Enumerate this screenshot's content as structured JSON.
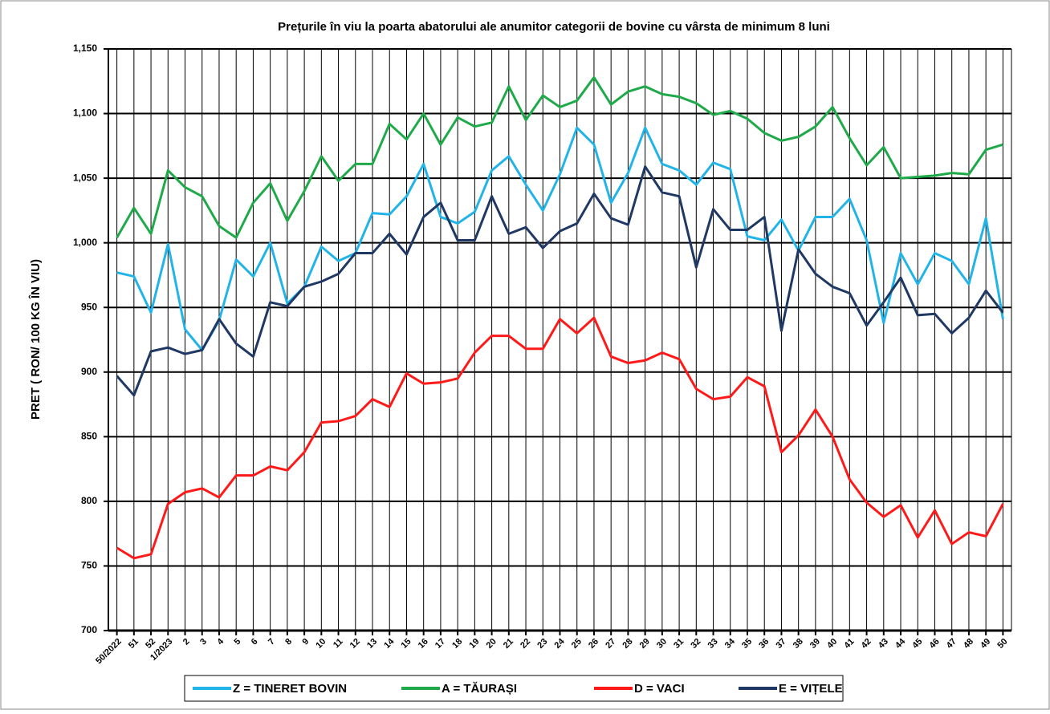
{
  "chart_data": {
    "type": "line",
    "title": "Prețurile în viu la poarta abatorului ale anumitor categorii de  bovine cu vârsta de minimum 8 luni",
    "y_label": "PRET ( RON/ 100 KG ÎN VIU)",
    "categories": [
      "50/2022",
      "51",
      "52",
      "1/2023",
      "2",
      "3",
      "4",
      "5",
      "6",
      "7",
      "8",
      "9",
      "10",
      "11",
      "12",
      "13",
      "14",
      "15",
      "16",
      "17",
      "18",
      "19",
      "20",
      "21",
      "22",
      "23",
      "24",
      "25",
      "26",
      "27",
      "28",
      "29",
      "30",
      "31",
      "32",
      "33",
      "34",
      "35",
      "36",
      "37",
      "38",
      "39",
      "40",
      "41",
      "42",
      "43",
      "44",
      "45",
      "46",
      "47",
      "48",
      "49",
      "50"
    ],
    "series": [
      {
        "name": "Z  = TINERET BOVIN",
        "color": "#22b4e8",
        "values": [
          977,
          974,
          946,
          999,
          933,
          917,
          940,
          987,
          974,
          1000,
          953,
          966,
          997,
          986,
          992,
          1023,
          1022,
          1036,
          1061,
          1020,
          1015,
          1024,
          1056,
          1067,
          1045,
          1025,
          1053,
          1089,
          1076,
          1031,
          1054,
          1089,
          1061,
          1056,
          1045,
          1062,
          1057,
          1005,
          1002,
          1018,
          994,
          1020,
          1020,
          1034,
          1002,
          938,
          992,
          968,
          992,
          986,
          968,
          1019,
          941
        ]
      },
      {
        "name": "A = TĂURAȘI",
        "color": "#1faa4a",
        "values": [
          1004,
          1027,
          1007,
          1056,
          1043,
          1036,
          1013,
          1004,
          1031,
          1046,
          1017,
          1040,
          1067,
          1048,
          1061,
          1061,
          1092,
          1080,
          1100,
          1076,
          1097,
          1090,
          1093,
          1121,
          1095,
          1114,
          1105,
          1110,
          1128,
          1107,
          1117,
          1121,
          1115,
          1113,
          1108,
          1099,
          1102,
          1096,
          1085,
          1079,
          1082,
          1090,
          1105,
          1081,
          1060,
          1074,
          1050,
          1051,
          1052,
          1054,
          1053,
          1072,
          1076
        ]
      },
      {
        "name": "D = VACI",
        "color": "#ff1a1a",
        "values": [
          764,
          756,
          759,
          798,
          807,
          810,
          803,
          820,
          820,
          827,
          824,
          838,
          861,
          862,
          866,
          879,
          873,
          899,
          891,
          892,
          895,
          915,
          928,
          928,
          918,
          918,
          941,
          930,
          942,
          912,
          907,
          909,
          915,
          910,
          887,
          879,
          881,
          896,
          889,
          838,
          851,
          871,
          850,
          817,
          799,
          788,
          797,
          772,
          793,
          767,
          776,
          773,
          798
        ]
      },
      {
        "name": "E = VIȚELE",
        "color": "#1f3864",
        "values": [
          897,
          882,
          916,
          919,
          914,
          917,
          941,
          922,
          912,
          954,
          951,
          966,
          970,
          976,
          992,
          992,
          1007,
          991,
          1020,
          1031,
          1002,
          1002,
          1036,
          1007,
          1012,
          996,
          1009,
          1015,
          1038,
          1019,
          1014,
          1059,
          1039,
          1036,
          981,
          1026,
          1010,
          1010,
          1020,
          932,
          995,
          976,
          966,
          961,
          936,
          954,
          973,
          944,
          945,
          930,
          942,
          963,
          946
        ]
      }
    ],
    "ylim": [
      700,
      1150
    ],
    "yticks": [
      700,
      750,
      800,
      850,
      900,
      950,
      {
        "value": 1000,
        "label": "1,000"
      },
      {
        "value": 1050,
        "label": "1,050"
      },
      {
        "value": 1100,
        "label": "1,100"
      },
      {
        "value": 1150,
        "label": "1,150"
      }
    ],
    "grid": true
  }
}
